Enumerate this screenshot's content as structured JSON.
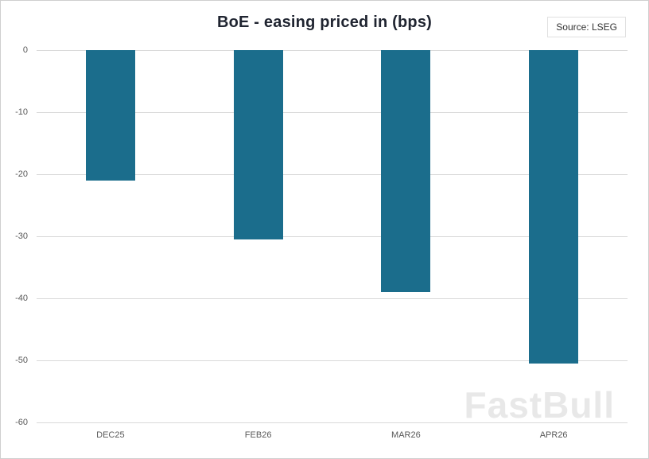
{
  "chart": {
    "title": "BoE - easing priced in (bps)",
    "source": "Source: LSEG",
    "watermark": "FastBull"
  },
  "chart_data": {
    "type": "bar",
    "categories": [
      "DEC25",
      "FEB26",
      "MAR26",
      "APR26"
    ],
    "values": [
      -21,
      -30.5,
      -39,
      -50.5
    ],
    "title": "BoE - easing priced in (bps)",
    "xlabel": "",
    "ylabel": "",
    "ylim": [
      -60,
      0
    ],
    "yticks": [
      0,
      -10,
      -20,
      -30,
      -40,
      -50,
      -60
    ],
    "grid": true,
    "legend": false,
    "bar_color": "#1b6d8c",
    "gridline_color": "#d9d9d9",
    "axis_text_color": "#595959"
  }
}
